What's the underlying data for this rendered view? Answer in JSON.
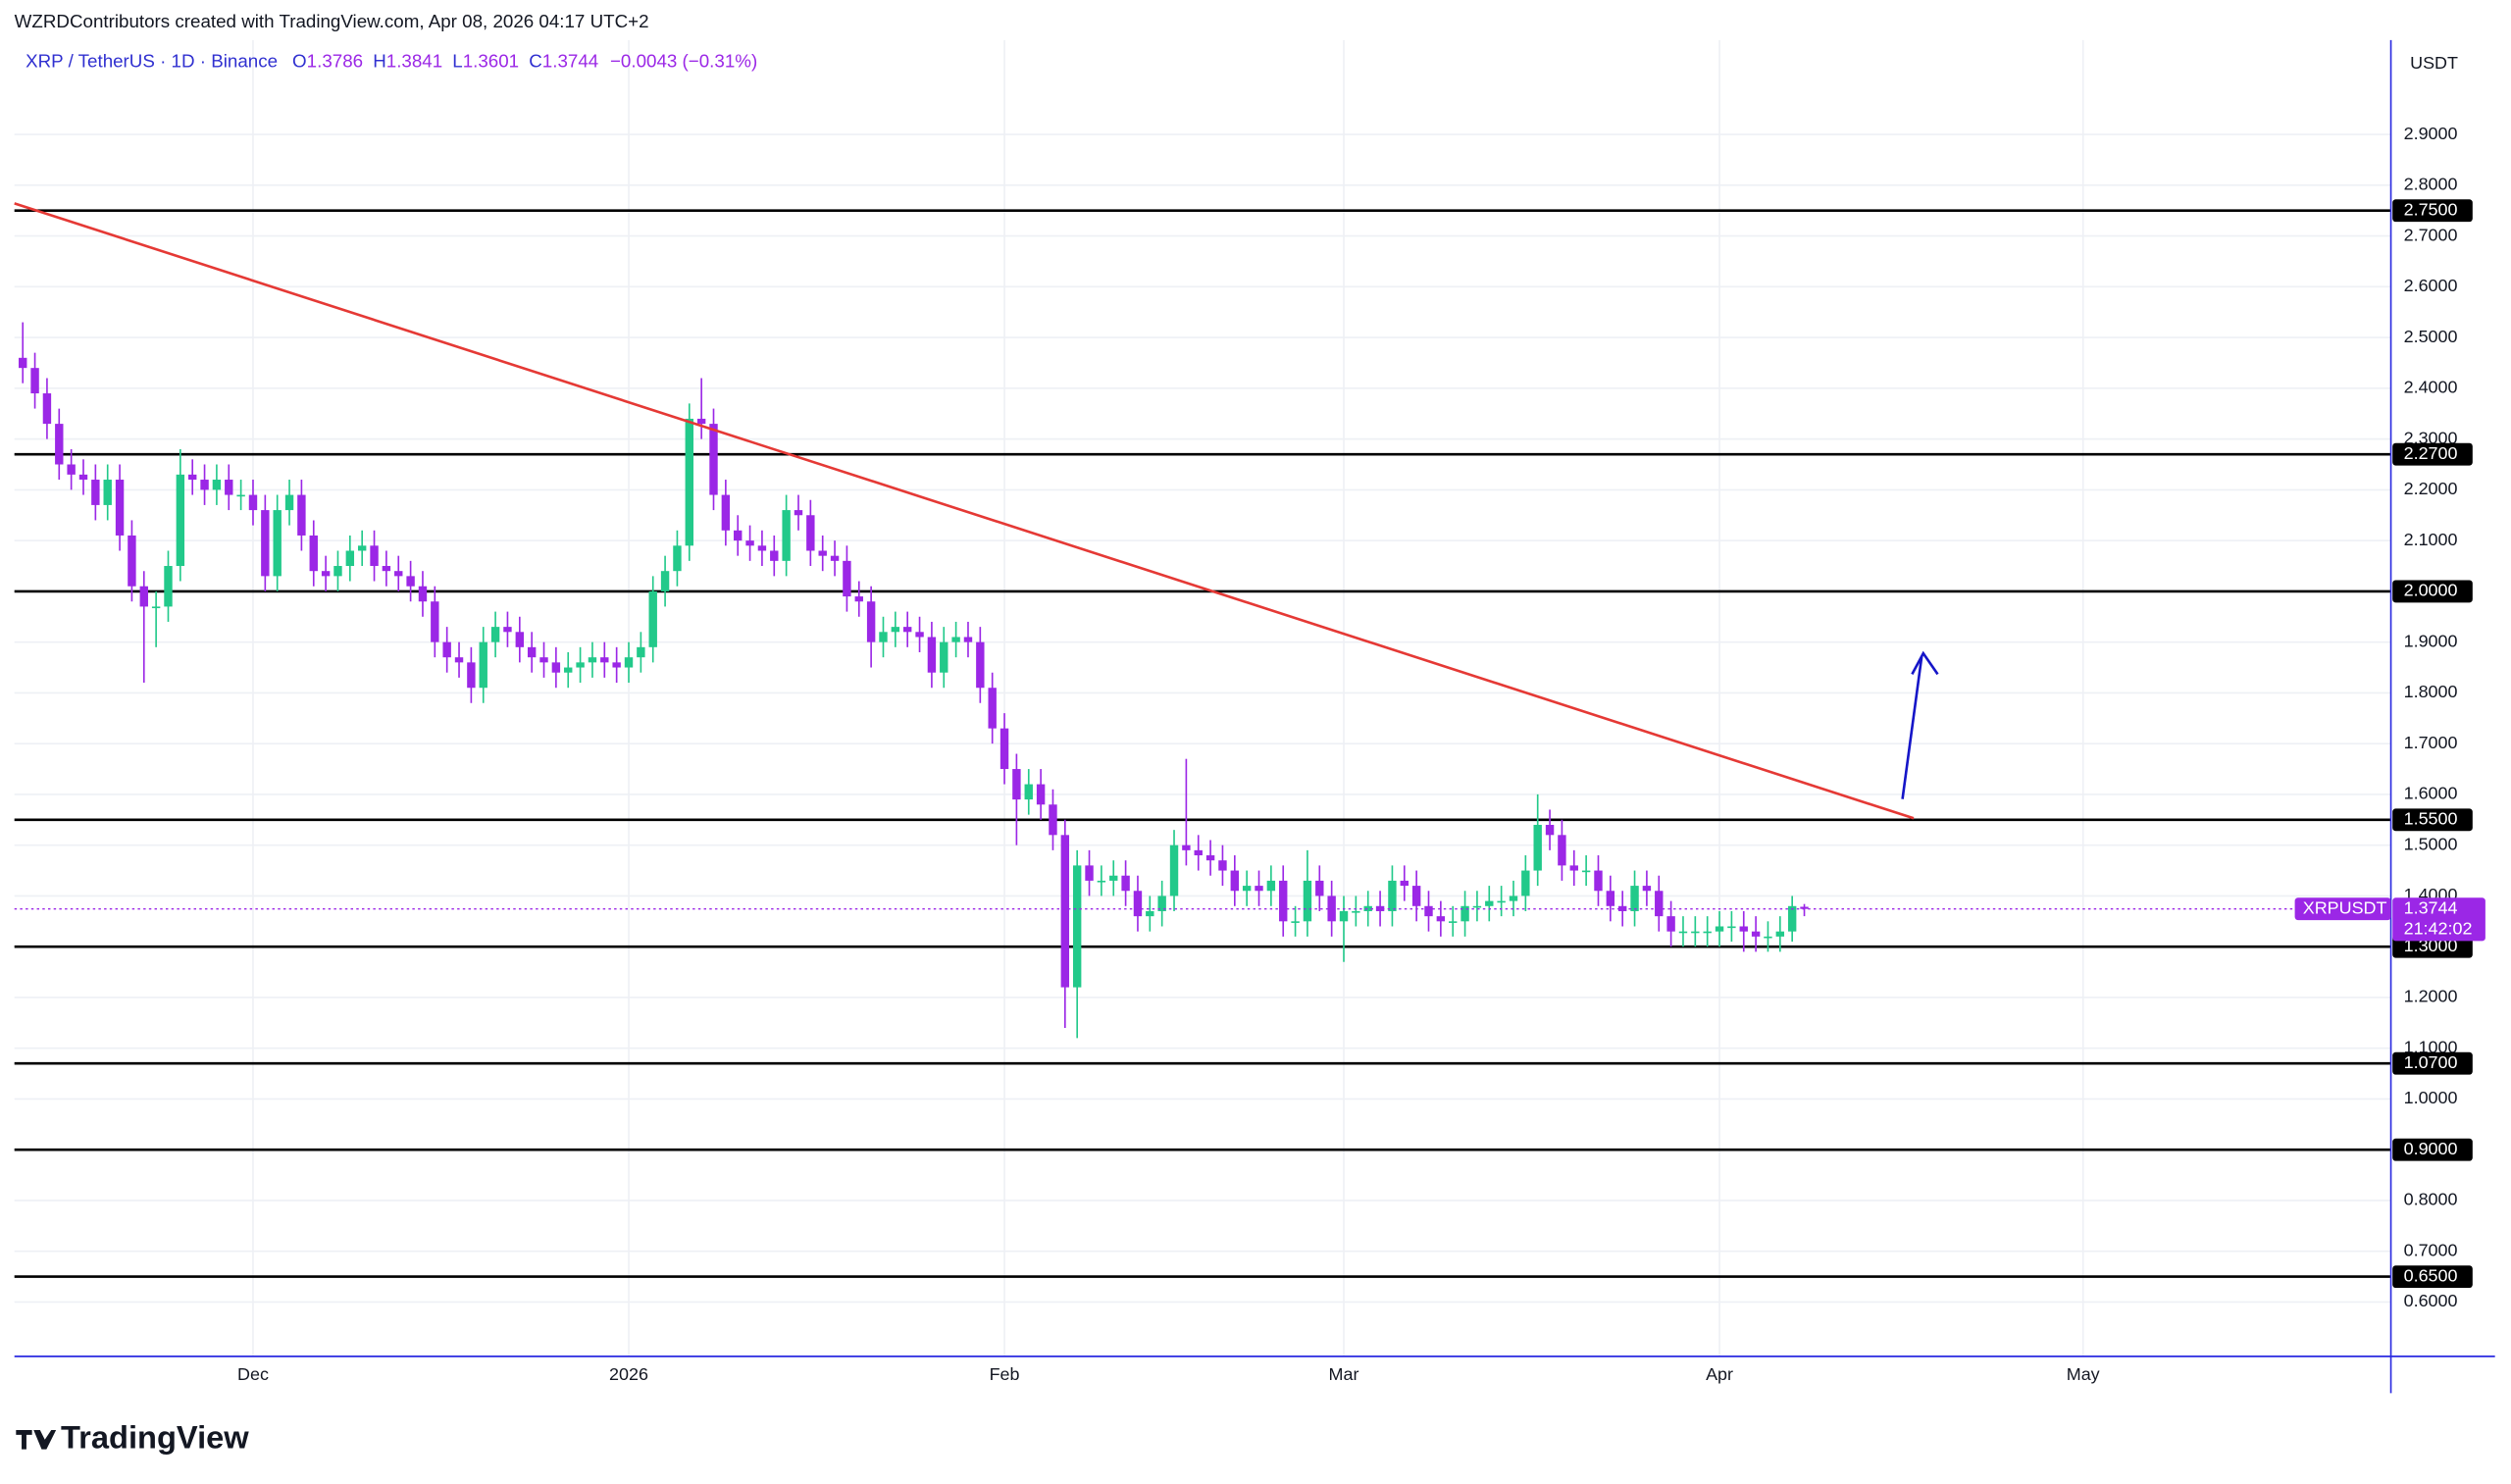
{
  "header": {
    "attribution": "WZRDContributors created with TradingView.com, Apr 08, 2026 04:17 UTC+2",
    "symbol": "XRP / TetherUS · 1D · Binance",
    "ohlc": [
      {
        "label": "O",
        "value": "1.3786"
      },
      {
        "label": "H",
        "value": "1.3841"
      },
      {
        "label": "L",
        "value": "1.3601"
      },
      {
        "label": "C",
        "value": "1.3744"
      }
    ],
    "change": "−0.0043 (−0.31%)"
  },
  "chart_data": {
    "type": "candlestick",
    "open": [
      2.46,
      2.44,
      2.39,
      2.33,
      2.25,
      2.23,
      2.22,
      2.17,
      2.22,
      2.11,
      2.01,
      1.97,
      1.97,
      2.05,
      2.23,
      2.22,
      2.2,
      2.22,
      2.19,
      2.19,
      2.16,
      2.03,
      2.16,
      2.19,
      2.11,
      2.04,
      2.03,
      2.05,
      2.08,
      2.09,
      2.05,
      2.04,
      2.03,
      2.01,
      1.98,
      1.9,
      1.87,
      1.86,
      1.81,
      1.9,
      1.93,
      1.92,
      1.89,
      1.87,
      1.86,
      1.84,
      1.85,
      1.86,
      1.87,
      1.86,
      1.85,
      1.87,
      1.89,
      2.0,
      2.04,
      2.09,
      2.34,
      2.33,
      2.19,
      2.12,
      2.1,
      2.09,
      2.08,
      2.06,
      2.16,
      2.15,
      2.08,
      2.07,
      2.06,
      1.99,
      1.98,
      1.9,
      1.92,
      1.93,
      1.92,
      1.91,
      1.84,
      1.9,
      1.91,
      1.9,
      1.81,
      1.73,
      1.65,
      1.59,
      1.62,
      1.58,
      1.52,
      1.22,
      1.46,
      1.43,
      1.43,
      1.44,
      1.41,
      1.36,
      1.37,
      1.4,
      1.5,
      1.49,
      1.48,
      1.47,
      1.45,
      1.41,
      1.42,
      1.41,
      1.43,
      1.35,
      1.35,
      1.43,
      1.4,
      1.35,
      1.37,
      1.37,
      1.38,
      1.37,
      1.43,
      1.42,
      1.38,
      1.36,
      1.35,
      1.35,
      1.38,
      1.38,
      1.39,
      1.39,
      1.4,
      1.45,
      1.54,
      1.52,
      1.46,
      1.45,
      1.45,
      1.41,
      1.38,
      1.37,
      1.42,
      1.41,
      1.36,
      1.33,
      1.33,
      1.33,
      1.33,
      1.34,
      1.34,
      1.33,
      1.32,
      1.32,
      1.33,
      1.3786
    ],
    "high": [
      2.53,
      2.47,
      2.42,
      2.36,
      2.28,
      2.26,
      2.25,
      2.25,
      2.25,
      2.14,
      2.04,
      2.0,
      2.08,
      2.28,
      2.26,
      2.25,
      2.25,
      2.25,
      2.22,
      2.22,
      2.19,
      2.19,
      2.22,
      2.22,
      2.14,
      2.07,
      2.08,
      2.11,
      2.12,
      2.12,
      2.08,
      2.07,
      2.06,
      2.04,
      2.01,
      1.93,
      1.9,
      1.89,
      1.93,
      1.96,
      1.96,
      1.95,
      1.92,
      1.9,
      1.89,
      1.88,
      1.89,
      1.9,
      1.9,
      1.89,
      1.9,
      1.92,
      2.03,
      2.07,
      2.12,
      2.37,
      2.42,
      2.36,
      2.22,
      2.15,
      2.13,
      2.12,
      2.11,
      2.19,
      2.19,
      2.18,
      2.11,
      2.1,
      2.09,
      2.02,
      2.01,
      1.95,
      1.96,
      1.96,
      1.95,
      1.94,
      1.93,
      1.94,
      1.94,
      1.93,
      1.84,
      1.76,
      1.68,
      1.65,
      1.65,
      1.61,
      1.55,
      1.49,
      1.49,
      1.46,
      1.47,
      1.47,
      1.44,
      1.4,
      1.43,
      1.53,
      1.67,
      1.52,
      1.51,
      1.5,
      1.48,
      1.45,
      1.45,
      1.46,
      1.46,
      1.38,
      1.49,
      1.46,
      1.43,
      1.4,
      1.4,
      1.41,
      1.41,
      1.46,
      1.46,
      1.45,
      1.41,
      1.39,
      1.38,
      1.41,
      1.41,
      1.42,
      1.42,
      1.43,
      1.48,
      1.6,
      1.57,
      1.55,
      1.49,
      1.48,
      1.48,
      1.44,
      1.41,
      1.45,
      1.45,
      1.44,
      1.39,
      1.36,
      1.36,
      1.36,
      1.37,
      1.37,
      1.37,
      1.36,
      1.35,
      1.36,
      1.4,
      1.3841
    ],
    "low": [
      2.41,
      2.36,
      2.3,
      2.22,
      2.2,
      2.19,
      2.14,
      2.14,
      2.08,
      1.98,
      1.82,
      1.89,
      1.94,
      2.02,
      2.19,
      2.17,
      2.17,
      2.16,
      2.16,
      2.13,
      2.0,
      2.0,
      2.13,
      2.08,
      2.01,
      2.0,
      2.0,
      2.02,
      2.05,
      2.02,
      2.01,
      2.0,
      1.98,
      1.95,
      1.87,
      1.84,
      1.83,
      1.78,
      1.78,
      1.87,
      1.89,
      1.86,
      1.84,
      1.83,
      1.81,
      1.81,
      1.82,
      1.83,
      1.83,
      1.82,
      1.82,
      1.84,
      1.86,
      1.97,
      2.01,
      2.06,
      2.3,
      2.16,
      2.09,
      2.07,
      2.06,
      2.05,
      2.03,
      2.03,
      2.12,
      2.05,
      2.04,
      2.03,
      1.96,
      1.95,
      1.85,
      1.87,
      1.89,
      1.89,
      1.88,
      1.81,
      1.81,
      1.87,
      1.87,
      1.78,
      1.7,
      1.62,
      1.5,
      1.56,
      1.55,
      1.49,
      1.14,
      1.12,
      1.4,
      1.4,
      1.4,
      1.38,
      1.33,
      1.33,
      1.34,
      1.37,
      1.46,
      1.45,
      1.44,
      1.42,
      1.38,
      1.38,
      1.38,
      1.38,
      1.32,
      1.32,
      1.32,
      1.37,
      1.32,
      1.27,
      1.34,
      1.34,
      1.34,
      1.34,
      1.39,
      1.35,
      1.33,
      1.32,
      1.32,
      1.32,
      1.35,
      1.35,
      1.36,
      1.36,
      1.37,
      1.42,
      1.49,
      1.43,
      1.42,
      1.42,
      1.38,
      1.35,
      1.34,
      1.34,
      1.38,
      1.33,
      1.3,
      1.3,
      1.3,
      1.3,
      1.3,
      1.31,
      1.29,
      1.29,
      1.29,
      1.29,
      1.31,
      1.3601
    ],
    "close": [
      2.44,
      2.39,
      2.33,
      2.25,
      2.23,
      2.22,
      2.17,
      2.22,
      2.11,
      2.01,
      1.97,
      1.97,
      2.05,
      2.23,
      2.22,
      2.2,
      2.22,
      2.19,
      2.19,
      2.16,
      2.03,
      2.16,
      2.19,
      2.11,
      2.04,
      2.03,
      2.05,
      2.08,
      2.09,
      2.05,
      2.04,
      2.03,
      2.01,
      1.98,
      1.9,
      1.87,
      1.86,
      1.81,
      1.9,
      1.93,
      1.92,
      1.89,
      1.87,
      1.86,
      1.84,
      1.85,
      1.86,
      1.87,
      1.86,
      1.85,
      1.87,
      1.89,
      2.0,
      2.04,
      2.09,
      2.34,
      2.33,
      2.19,
      2.12,
      2.1,
      2.09,
      2.08,
      2.06,
      2.16,
      2.15,
      2.08,
      2.07,
      2.06,
      1.99,
      1.98,
      1.9,
      1.92,
      1.93,
      1.92,
      1.91,
      1.84,
      1.9,
      1.91,
      1.9,
      1.81,
      1.73,
      1.65,
      1.59,
      1.62,
      1.58,
      1.52,
      1.22,
      1.46,
      1.43,
      1.43,
      1.44,
      1.41,
      1.36,
      1.37,
      1.4,
      1.5,
      1.49,
      1.48,
      1.47,
      1.45,
      1.41,
      1.42,
      1.41,
      1.43,
      1.35,
      1.35,
      1.43,
      1.4,
      1.35,
      1.37,
      1.37,
      1.38,
      1.37,
      1.43,
      1.42,
      1.38,
      1.36,
      1.35,
      1.35,
      1.38,
      1.38,
      1.39,
      1.39,
      1.4,
      1.45,
      1.54,
      1.52,
      1.46,
      1.45,
      1.45,
      1.41,
      1.38,
      1.37,
      1.42,
      1.41,
      1.36,
      1.33,
      1.33,
      1.33,
      1.33,
      1.34,
      1.34,
      1.33,
      1.32,
      1.32,
      1.33,
      1.38,
      1.3744
    ],
    "up_color": "#22c98a",
    "down_color": "#9b27e6",
    "xlim": [
      -0.69,
      195.4
    ],
    "xticks": [
      {
        "value": 19,
        "label": "Dec"
      },
      {
        "value": 50,
        "label": "2026"
      },
      {
        "value": 81,
        "label": "Feb"
      },
      {
        "value": 109,
        "label": "Mar"
      },
      {
        "value": 140,
        "label": "Apr"
      },
      {
        "value": 170,
        "label": "May"
      }
    ],
    "ylim": [
      0.493,
      3.086
    ],
    "yticks": [
      {
        "value": 0.6,
        "label": "0.6000"
      },
      {
        "value": 0.7,
        "label": "0.7000"
      },
      {
        "value": 0.8,
        "label": "0.8000"
      },
      {
        "value": 1.0,
        "label": "1.0000"
      },
      {
        "value": 1.1,
        "label": "1.1000"
      },
      {
        "value": 1.2,
        "label": "1.2000"
      },
      {
        "value": 1.4,
        "label": "1.4000"
      },
      {
        "value": 1.5,
        "label": "1.5000"
      },
      {
        "value": 1.6,
        "label": "1.6000"
      },
      {
        "value": 1.7,
        "label": "1.7000"
      },
      {
        "value": 1.8,
        "label": "1.8000"
      },
      {
        "value": 1.9,
        "label": "1.9000"
      },
      {
        "value": 2.1,
        "label": "2.1000"
      },
      {
        "value": 2.2,
        "label": "2.2000"
      },
      {
        "value": 2.3,
        "label": "2.3000"
      },
      {
        "value": 2.4,
        "label": "2.4000"
      },
      {
        "value": 2.5,
        "label": "2.5000"
      },
      {
        "value": 2.6,
        "label": "2.6000"
      },
      {
        "value": 2.7,
        "label": "2.7000"
      },
      {
        "value": 2.8,
        "label": "2.8000"
      },
      {
        "value": 2.9,
        "label": "2.9000"
      }
    ],
    "grid": true,
    "currency": "USDT",
    "levels": [
      {
        "value": 2.75,
        "label": "2.7500"
      },
      {
        "value": 2.27,
        "label": "2.2700"
      },
      {
        "value": 2.0,
        "label": "2.0000"
      },
      {
        "value": 1.55,
        "label": "1.5500"
      },
      {
        "value": 1.3,
        "label": "1.3000"
      },
      {
        "value": 1.07,
        "label": "1.0700"
      },
      {
        "value": 0.9,
        "label": "0.9000"
      },
      {
        "value": 0.65,
        "label": "0.6500"
      }
    ],
    "last_price": {
      "name": "XRPUSDT",
      "value": 1.3744,
      "countdown": "21:42:02"
    }
  },
  "footer": {
    "logo": "TradingView"
  }
}
